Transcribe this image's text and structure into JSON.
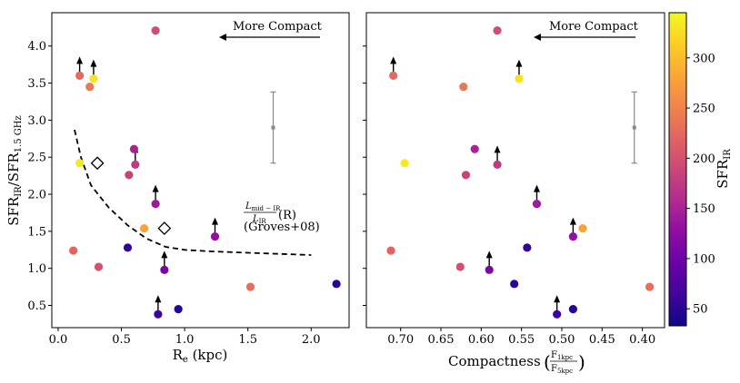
{
  "chart_data": [
    {
      "type": "scatter",
      "xlabel": "R",
      "xlabel_sub": "e",
      "xlabel_tail": " (kpc)",
      "ylabel": "SFR",
      "ylabel_sub1": "IR",
      "ylabel_mid": "/SFR",
      "ylabel_sub2": "1.5 GHz",
      "xlim": [
        -0.05,
        2.3
      ],
      "ylim": [
        0.2,
        4.45
      ],
      "xticks": [
        0.0,
        0.5,
        1.0,
        1.5,
        2.0
      ],
      "xtick_labels": [
        "0.0",
        "0.5",
        "1.0",
        "1.5",
        "2.0"
      ],
      "yticks": [
        0.5,
        1.0,
        1.5,
        2.0,
        2.5,
        3.0,
        3.5,
        4.0
      ],
      "ytick_labels": [
        "0.5",
        "1.0",
        "1.5",
        "2.0",
        "2.5",
        "3.0",
        "3.5",
        "4.0"
      ],
      "points": [
        {
          "x": 0.77,
          "y": 4.21,
          "sfr": 195,
          "arrow": false
        },
        {
          "x": 0.17,
          "y": 3.6,
          "sfr": 225,
          "arrow": true
        },
        {
          "x": 0.28,
          "y": 3.56,
          "sfr": 330,
          "arrow": true
        },
        {
          "x": 0.25,
          "y": 3.45,
          "sfr": 240,
          "arrow": false
        },
        {
          "x": 0.6,
          "y": 2.61,
          "sfr": 150,
          "arrow": false
        },
        {
          "x": 0.61,
          "y": 2.4,
          "sfr": 175,
          "arrow": true
        },
        {
          "x": 0.56,
          "y": 2.26,
          "sfr": 185,
          "arrow": false
        },
        {
          "x": 0.17,
          "y": 2.42,
          "sfr": 335,
          "arrow": false
        },
        {
          "x": 0.77,
          "y": 1.87,
          "sfr": 140,
          "arrow": true
        },
        {
          "x": 0.68,
          "y": 1.54,
          "sfr": 280,
          "arrow": false
        },
        {
          "x": 1.24,
          "y": 1.43,
          "sfr": 130,
          "arrow": true
        },
        {
          "x": 0.55,
          "y": 1.28,
          "sfr": 55,
          "arrow": false
        },
        {
          "x": 0.12,
          "y": 1.24,
          "sfr": 220,
          "arrow": false
        },
        {
          "x": 0.84,
          "y": 0.98,
          "sfr": 110,
          "arrow": true
        },
        {
          "x": 0.32,
          "y": 1.02,
          "sfr": 200,
          "arrow": false
        },
        {
          "x": 1.52,
          "y": 0.75,
          "sfr": 230,
          "arrow": false
        },
        {
          "x": 2.2,
          "y": 0.79,
          "sfr": 50,
          "arrow": false
        },
        {
          "x": 0.95,
          "y": 0.45,
          "sfr": 48,
          "arrow": false
        },
        {
          "x": 0.79,
          "y": 0.38,
          "sfr": 60,
          "arrow": true
        }
      ],
      "diamonds": [
        {
          "x": 0.31,
          "y": 2.42
        },
        {
          "x": 0.84,
          "y": 1.54
        }
      ],
      "dashed_line": {
        "x": [
          0.13,
          0.18,
          0.26,
          0.4,
          0.55,
          0.7,
          0.85,
          1.0,
          1.2,
          1.5,
          2.0
        ],
        "y": [
          2.87,
          2.5,
          2.12,
          1.82,
          1.58,
          1.4,
          1.29,
          1.25,
          1.23,
          1.21,
          1.18
        ]
      },
      "errorbar": {
        "x": 1.7,
        "y": 2.9,
        "low": 2.42,
        "high": 3.38
      },
      "arrow_label": "More Compact",
      "curve_label_num": "L",
      "curve_label_num_sub": "mid − IR",
      "curve_label_den": "L",
      "curve_label_den_sub": "IR",
      "curve_label_r": "(R)",
      "curve_label_ref": "(Groves+08)"
    },
    {
      "type": "scatter",
      "xlabel": "Compactness",
      "frac_num": "F",
      "frac_num_sub": "1kpc",
      "frac_den": "F",
      "frac_den_sub": "5kpc",
      "xlim": [
        0.7425,
        0.3725
      ],
      "ylim": [
        0.2,
        4.45
      ],
      "xticks": [
        0.7,
        0.65,
        0.6,
        0.55,
        0.5,
        0.45,
        0.4
      ],
      "xtick_labels": [
        "0.70",
        "0.65",
        "0.60",
        "0.55",
        "0.50",
        "0.45",
        "0.40"
      ],
      "points": [
        {
          "x": 0.58,
          "y": 4.21,
          "sfr": 195,
          "arrow": false
        },
        {
          "x": 0.709,
          "y": 3.6,
          "sfr": 225,
          "arrow": true
        },
        {
          "x": 0.553,
          "y": 3.56,
          "sfr": 330,
          "arrow": true
        },
        {
          "x": 0.622,
          "y": 3.45,
          "sfr": 240,
          "arrow": false
        },
        {
          "x": 0.608,
          "y": 2.61,
          "sfr": 150,
          "arrow": false
        },
        {
          "x": 0.58,
          "y": 2.4,
          "sfr": 175,
          "arrow": true
        },
        {
          "x": 0.619,
          "y": 2.26,
          "sfr": 185,
          "arrow": false
        },
        {
          "x": 0.695,
          "y": 2.42,
          "sfr": 335,
          "arrow": false
        },
        {
          "x": 0.531,
          "y": 1.87,
          "sfr": 140,
          "arrow": true
        },
        {
          "x": 0.474,
          "y": 1.54,
          "sfr": 280,
          "arrow": false
        },
        {
          "x": 0.486,
          "y": 1.43,
          "sfr": 130,
          "arrow": true
        },
        {
          "x": 0.543,
          "y": 1.28,
          "sfr": 55,
          "arrow": false
        },
        {
          "x": 0.712,
          "y": 1.24,
          "sfr": 220,
          "arrow": false
        },
        {
          "x": 0.59,
          "y": 0.98,
          "sfr": 110,
          "arrow": true
        },
        {
          "x": 0.626,
          "y": 1.02,
          "sfr": 200,
          "arrow": false
        },
        {
          "x": 0.391,
          "y": 0.75,
          "sfr": 230,
          "arrow": false
        },
        {
          "x": 0.559,
          "y": 0.79,
          "sfr": 50,
          "arrow": false
        },
        {
          "x": 0.486,
          "y": 0.45,
          "sfr": 48,
          "arrow": false
        },
        {
          "x": 0.506,
          "y": 0.38,
          "sfr": 60,
          "arrow": true
        }
      ],
      "errorbar": {
        "x": 0.41,
        "y": 2.9,
        "low": 2.42,
        "high": 3.38
      },
      "arrow_label": "More Compact"
    }
  ],
  "colorbar": {
    "label": "SFR",
    "label_sub": "IR",
    "range": [
      33,
      345
    ],
    "ticks": [
      50,
      100,
      150,
      200,
      250,
      300
    ],
    "tick_labels": [
      "50",
      "100",
      "150",
      "200",
      "250",
      "300"
    ],
    "colormap": "plasma"
  }
}
